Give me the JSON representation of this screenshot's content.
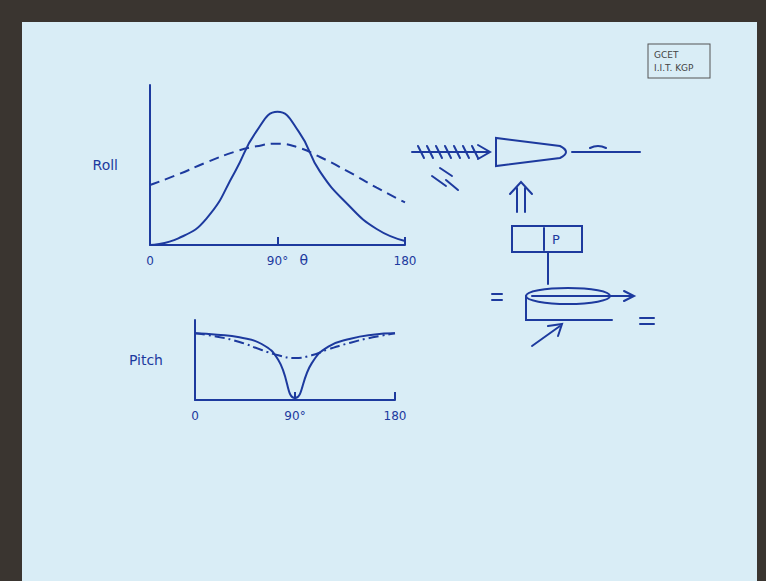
{
  "chart_data": [
    {
      "type": "line",
      "y_label": "Roll",
      "annotation": "θ",
      "xlim": [
        0,
        180
      ],
      "xticks": [
        0,
        {
          "value": 90,
          "label": "90°"
        },
        180
      ],
      "ylim": [
        0,
        12
      ],
      "tick_labels": "x",
      "grid": false,
      "x": [
        0,
        20,
        40,
        60,
        75,
        90,
        105,
        120,
        140,
        160,
        180
      ],
      "series": [
        {
          "color": "#1d3a9e",
          "line_style": "solid",
          "marker": "none",
          "values": [
            0,
            0.5,
            2,
            5.5,
            8.5,
            10,
            8.5,
            5.5,
            3,
            1.2,
            0.3
          ]
        },
        {
          "color": "#1d3a9e",
          "line_style": "dashed",
          "marker": "none",
          "values": [
            4.5,
            5.3,
            6.2,
            7,
            7.4,
            7.6,
            7.3,
            6.6,
            5.5,
            4.3,
            3.2
          ]
        }
      ]
    },
    {
      "type": "line",
      "y_label": "Pitch",
      "xlim": [
        0,
        180
      ],
      "xticks": [
        0,
        {
          "value": 90,
          "label": "90°"
        },
        180
      ],
      "ylim": [
        0,
        12
      ],
      "tick_labels": "x",
      "grid": false,
      "x": [
        0,
        20,
        40,
        60,
        75,
        90,
        105,
        120,
        140,
        160,
        180
      ],
      "series": [
        {
          "color": "#1d3a9e",
          "line_style": "solid",
          "marker": "none",
          "values": [
            10,
            9.8,
            9.4,
            8.4,
            6,
            0.3,
            5.5,
            8,
            9.2,
            9.8,
            10
          ]
        },
        {
          "color": "#1d3a9e",
          "line_style": "dashdot",
          "marker": "none",
          "values": [
            10,
            9.5,
            8.7,
            7.5,
            6.7,
            6.3,
            6.7,
            7.6,
            8.6,
            9.4,
            10
          ]
        }
      ]
    }
  ],
  "logo": [
    "GCET",
    "I.I.T. KGP"
  ],
  "diagram": {
    "label": "P"
  }
}
